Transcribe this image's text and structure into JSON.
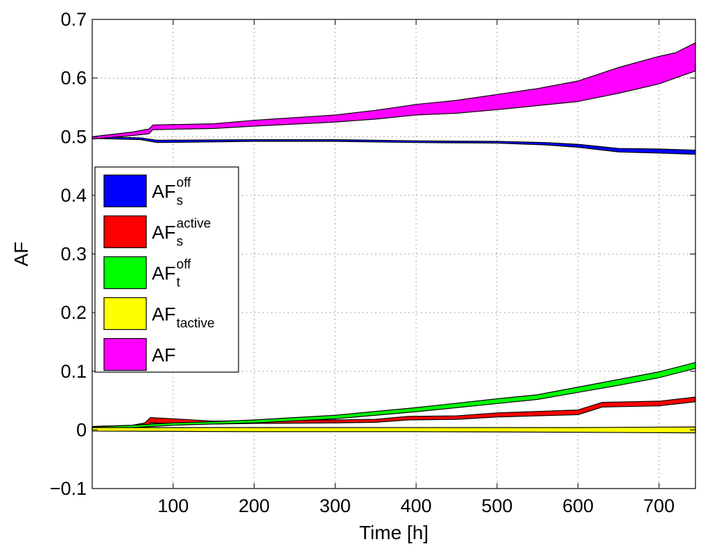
{
  "chart_data": {
    "type": "area",
    "xlabel": "Time [h]",
    "ylabel": "AF",
    "xlim": [
      0,
      745
    ],
    "ylim": [
      -0.1,
      0.7
    ],
    "xticks": [
      100,
      200,
      300,
      400,
      500,
      600,
      700
    ],
    "xtick_labels": [
      "100",
      "200",
      "300",
      "400",
      "500",
      "600",
      "700"
    ],
    "yticks": [
      -0.1,
      0,
      0.1,
      0.2,
      0.3,
      0.4,
      0.5,
      0.6,
      0.7
    ],
    "ytick_labels": [
      "−0.1",
      "0",
      "0.1",
      "0.2",
      "0.3",
      "0.4",
      "0.5",
      "0.6",
      "0.7"
    ],
    "grid": true,
    "legend_position": "middle-left",
    "series": [
      {
        "label": "AF",
        "sup": "off",
        "sub": "s",
        "color": "#0000ff",
        "x": [
          0,
          60,
          80,
          200,
          300,
          400,
          500,
          560,
          600,
          650,
          700,
          745
        ],
        "upper": [
          0.5,
          0.498,
          0.494,
          0.495,
          0.495,
          0.493,
          0.492,
          0.49,
          0.487,
          0.48,
          0.479,
          0.477
        ],
        "lower": [
          0.497,
          0.495,
          0.49,
          0.492,
          0.492,
          0.49,
          0.489,
          0.486,
          0.482,
          0.474,
          0.472,
          0.47
        ]
      },
      {
        "label": "AF",
        "sup": "active",
        "sub": "s",
        "color": "#ff0000",
        "x": [
          0,
          50,
          65,
          72,
          100,
          150,
          200,
          300,
          350,
          390,
          450,
          500,
          600,
          630,
          700,
          745
        ],
        "upper": [
          0.006,
          0.008,
          0.012,
          0.021,
          0.019,
          0.015,
          0.016,
          0.017,
          0.018,
          0.023,
          0.024,
          0.029,
          0.034,
          0.047,
          0.049,
          0.056
        ],
        "lower": [
          0.001,
          0.003,
          0.006,
          0.012,
          0.011,
          0.01,
          0.011,
          0.012,
          0.013,
          0.017,
          0.018,
          0.022,
          0.026,
          0.039,
          0.041,
          0.048
        ]
      },
      {
        "label": "AF",
        "sup": "off",
        "sub": "t",
        "color": "#00ff00",
        "x": [
          0,
          50,
          100,
          150,
          200,
          300,
          400,
          500,
          550,
          600,
          650,
          700,
          745
        ],
        "upper": [
          0.005,
          0.008,
          0.012,
          0.014,
          0.017,
          0.025,
          0.038,
          0.053,
          0.06,
          0.073,
          0.086,
          0.099,
          0.115
        ],
        "lower": [
          0.002,
          0.004,
          0.008,
          0.01,
          0.012,
          0.019,
          0.031,
          0.045,
          0.052,
          0.064,
          0.076,
          0.089,
          0.105
        ]
      },
      {
        "label": "AF",
        "sup": "",
        "sub": "tactive",
        "color": "#ffff00",
        "x": [
          0,
          200,
          400,
          600,
          745
        ],
        "upper": [
          0.004,
          0.004,
          0.004,
          0.004,
          0.005
        ],
        "lower": [
          -0.002,
          -0.003,
          -0.003,
          -0.004,
          -0.005
        ]
      },
      {
        "label": "AF",
        "sup": "",
        "sub": "",
        "color": "#ff00ff",
        "x": [
          0,
          50,
          70,
          75,
          150,
          200,
          300,
          350,
          400,
          450,
          500,
          550,
          600,
          650,
          700,
          720,
          745
        ],
        "upper": [
          0.5,
          0.508,
          0.513,
          0.52,
          0.522,
          0.528,
          0.537,
          0.545,
          0.555,
          0.562,
          0.572,
          0.582,
          0.595,
          0.618,
          0.637,
          0.643,
          0.66
        ],
        "lower": [
          0.496,
          0.502,
          0.505,
          0.512,
          0.514,
          0.518,
          0.525,
          0.53,
          0.537,
          0.54,
          0.546,
          0.553,
          0.56,
          0.574,
          0.59,
          0.6,
          0.612
        ]
      }
    ]
  }
}
